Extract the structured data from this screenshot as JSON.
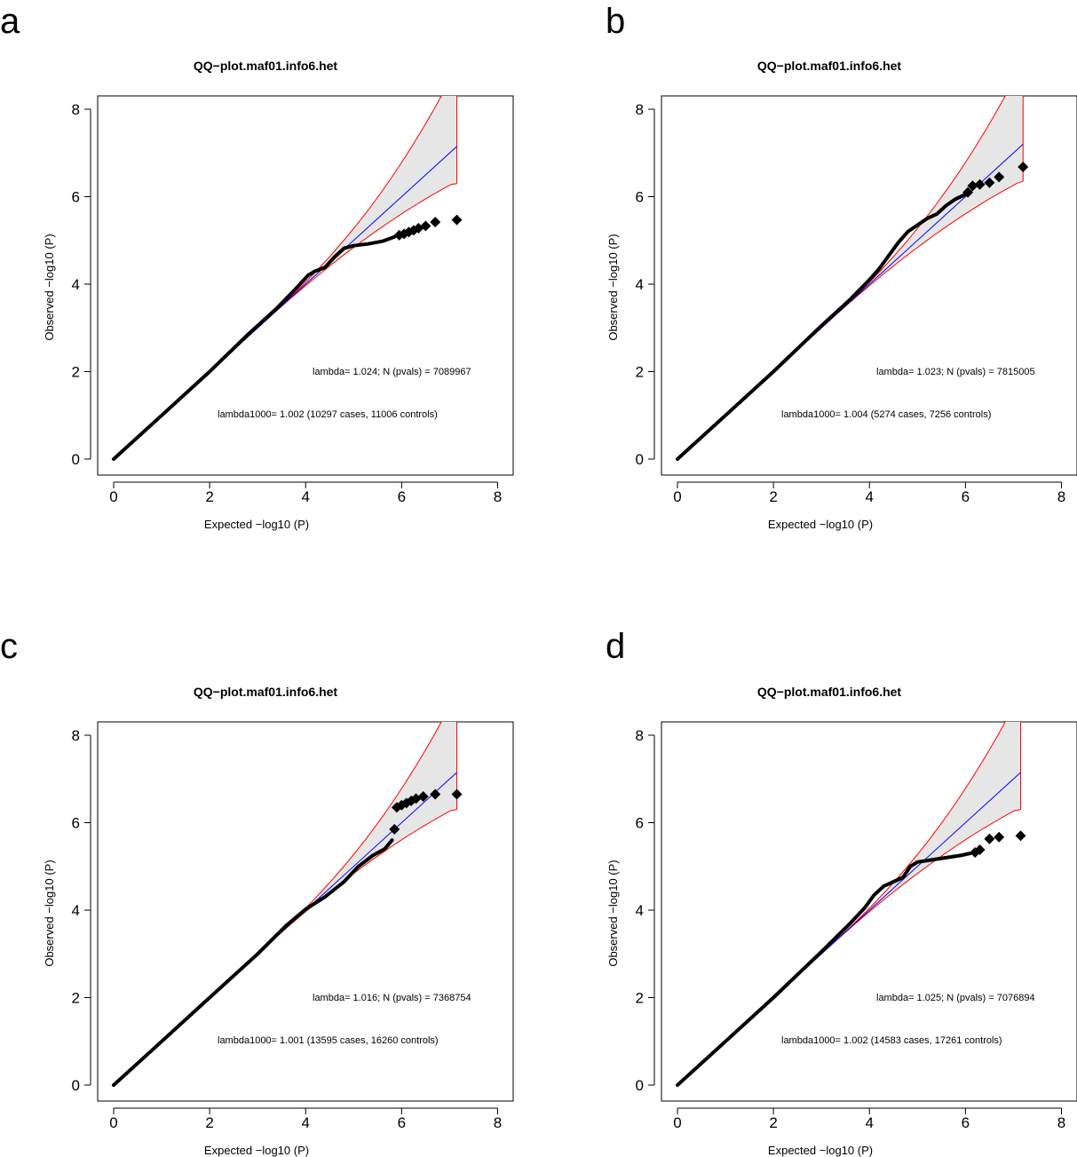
{
  "figure": {
    "panels": [
      {
        "letter": "a"
      },
      {
        "letter": "b"
      },
      {
        "letter": "c"
      },
      {
        "letter": "d"
      }
    ]
  },
  "colors": {
    "points": "#000000",
    "identity_line": "#0000ff",
    "confidence_band": "#ff0000",
    "band_fill": "#e6e6e6"
  },
  "chart_data": [
    {
      "type": "scatter",
      "panel": "a",
      "title": "QQ−plot.maf01.info6.het",
      "xlabel": "Expected −log10 (P)",
      "ylabel": "Observed −log10 (P)",
      "xlim": [
        0,
        8
      ],
      "ylim": [
        0,
        8
      ],
      "xticks": [
        "0",
        "2",
        "4",
        "6",
        "8"
      ],
      "yticks": [
        "0",
        "2",
        "4",
        "6",
        "8"
      ],
      "annotation_lambda": "lambda= 1.024; N (pvals) = 7089967",
      "annotation_lambda1000": "lambda1000= 1.002 (10297 cases, 11006 controls)",
      "expected_max": 7.15,
      "curve": [
        [
          0,
          0
        ],
        [
          1,
          1
        ],
        [
          2,
          2
        ],
        [
          2.8,
          2.85
        ],
        [
          3.4,
          3.45
        ],
        [
          3.8,
          3.9
        ],
        [
          4.05,
          4.2
        ],
        [
          4.2,
          4.3
        ],
        [
          4.4,
          4.38
        ],
        [
          4.6,
          4.62
        ],
        [
          4.8,
          4.82
        ],
        [
          5.0,
          4.88
        ],
        [
          5.3,
          4.92
        ],
        [
          5.6,
          4.98
        ],
        [
          5.85,
          5.08
        ]
      ],
      "top_points": [
        [
          5.95,
          5.12
        ],
        [
          6.05,
          5.15
        ],
        [
          6.15,
          5.19
        ],
        [
          6.25,
          5.23
        ],
        [
          6.35,
          5.28
        ],
        [
          6.5,
          5.33
        ],
        [
          6.7,
          5.42
        ],
        [
          7.15,
          5.47
        ]
      ]
    },
    {
      "type": "scatter",
      "panel": "b",
      "title": "QQ−plot.maf01.info6.het",
      "xlabel": "Expected −log10 (P)",
      "ylabel": "Observed −log10 (P)",
      "xlim": [
        0,
        8
      ],
      "ylim": [
        0,
        8
      ],
      "xticks": [
        "0",
        "2",
        "4",
        "6",
        "8"
      ],
      "yticks": [
        "0",
        "2",
        "4",
        "6",
        "8"
      ],
      "annotation_lambda": "lambda= 1.023; N (pvals) = 7815005",
      "annotation_lambda1000": "lambda1000= 1.004 (5274 cases, 7256 controls)",
      "expected_max": 7.2,
      "curve": [
        [
          0,
          0
        ],
        [
          1,
          1
        ],
        [
          2,
          2
        ],
        [
          3,
          3.05
        ],
        [
          3.6,
          3.65
        ],
        [
          4.0,
          4.1
        ],
        [
          4.2,
          4.35
        ],
        [
          4.4,
          4.65
        ],
        [
          4.6,
          4.95
        ],
        [
          4.8,
          5.2
        ],
        [
          5.0,
          5.35
        ],
        [
          5.2,
          5.5
        ],
        [
          5.4,
          5.6
        ],
        [
          5.6,
          5.8
        ],
        [
          5.8,
          5.95
        ],
        [
          6.0,
          6.05
        ]
      ],
      "top_points": [
        [
          6.05,
          6.1
        ],
        [
          6.15,
          6.25
        ],
        [
          6.3,
          6.28
        ],
        [
          6.5,
          6.32
        ],
        [
          6.7,
          6.45
        ],
        [
          7.2,
          6.68
        ]
      ]
    },
    {
      "type": "scatter",
      "panel": "c",
      "title": "QQ−plot.maf01.info6.het",
      "xlabel": "Expected −log10 (P)",
      "ylabel": "Observed −log10 (P)",
      "xlim": [
        0,
        8
      ],
      "ylim": [
        0,
        8
      ],
      "xticks": [
        "0",
        "2",
        "4",
        "6",
        "8"
      ],
      "yticks": [
        "0",
        "2",
        "4",
        "6",
        "8"
      ],
      "annotation_lambda": "lambda= 1.016; N (pvals) = 7368754",
      "annotation_lambda1000": "lambda1000= 1.001 (13595 cases, 16260 controls)",
      "expected_max": 7.15,
      "curve": [
        [
          0,
          0
        ],
        [
          1,
          1
        ],
        [
          2,
          2
        ],
        [
          3,
          3.0
        ],
        [
          3.6,
          3.65
        ],
        [
          4.0,
          4.02
        ],
        [
          4.4,
          4.3
        ],
        [
          4.8,
          4.65
        ],
        [
          5.1,
          5.0
        ],
        [
          5.4,
          5.25
        ],
        [
          5.65,
          5.4
        ],
        [
          5.8,
          5.6
        ]
      ],
      "top_points": [
        [
          5.85,
          5.85
        ],
        [
          5.9,
          6.35
        ],
        [
          6.0,
          6.4
        ],
        [
          6.1,
          6.45
        ],
        [
          6.2,
          6.5
        ],
        [
          6.3,
          6.55
        ],
        [
          6.45,
          6.6
        ],
        [
          6.7,
          6.65
        ],
        [
          7.15,
          6.65
        ]
      ]
    },
    {
      "type": "scatter",
      "panel": "d",
      "title": "QQ−plot.maf01.info6.het",
      "xlabel": "Expected −log10 (P)",
      "ylabel": "Observed −log10 (P)",
      "xlim": [
        0,
        8
      ],
      "ylim": [
        0,
        8
      ],
      "xticks": [
        "0",
        "2",
        "4",
        "6",
        "8"
      ],
      "yticks": [
        "0",
        "2",
        "4",
        "6",
        "8"
      ],
      "annotation_lambda": "lambda= 1.025; N (pvals) = 7076894",
      "annotation_lambda1000": "lambda1000= 1.002 (14583 cases, 17261 controls)",
      "expected_max": 7.15,
      "curve": [
        [
          0,
          0
        ],
        [
          1,
          1
        ],
        [
          2,
          2
        ],
        [
          3,
          3.05
        ],
        [
          3.6,
          3.7
        ],
        [
          3.9,
          4.05
        ],
        [
          4.1,
          4.35
        ],
        [
          4.3,
          4.55
        ],
        [
          4.5,
          4.65
        ],
        [
          4.7,
          4.75
        ],
        [
          4.85,
          5.0
        ],
        [
          5.0,
          5.1
        ],
        [
          5.3,
          5.15
        ],
        [
          5.6,
          5.2
        ],
        [
          5.9,
          5.25
        ],
        [
          6.1,
          5.3
        ]
      ],
      "top_points": [
        [
          6.2,
          5.32
        ],
        [
          6.3,
          5.38
        ],
        [
          6.5,
          5.63
        ],
        [
          6.7,
          5.67
        ],
        [
          7.15,
          5.7
        ]
      ]
    }
  ]
}
